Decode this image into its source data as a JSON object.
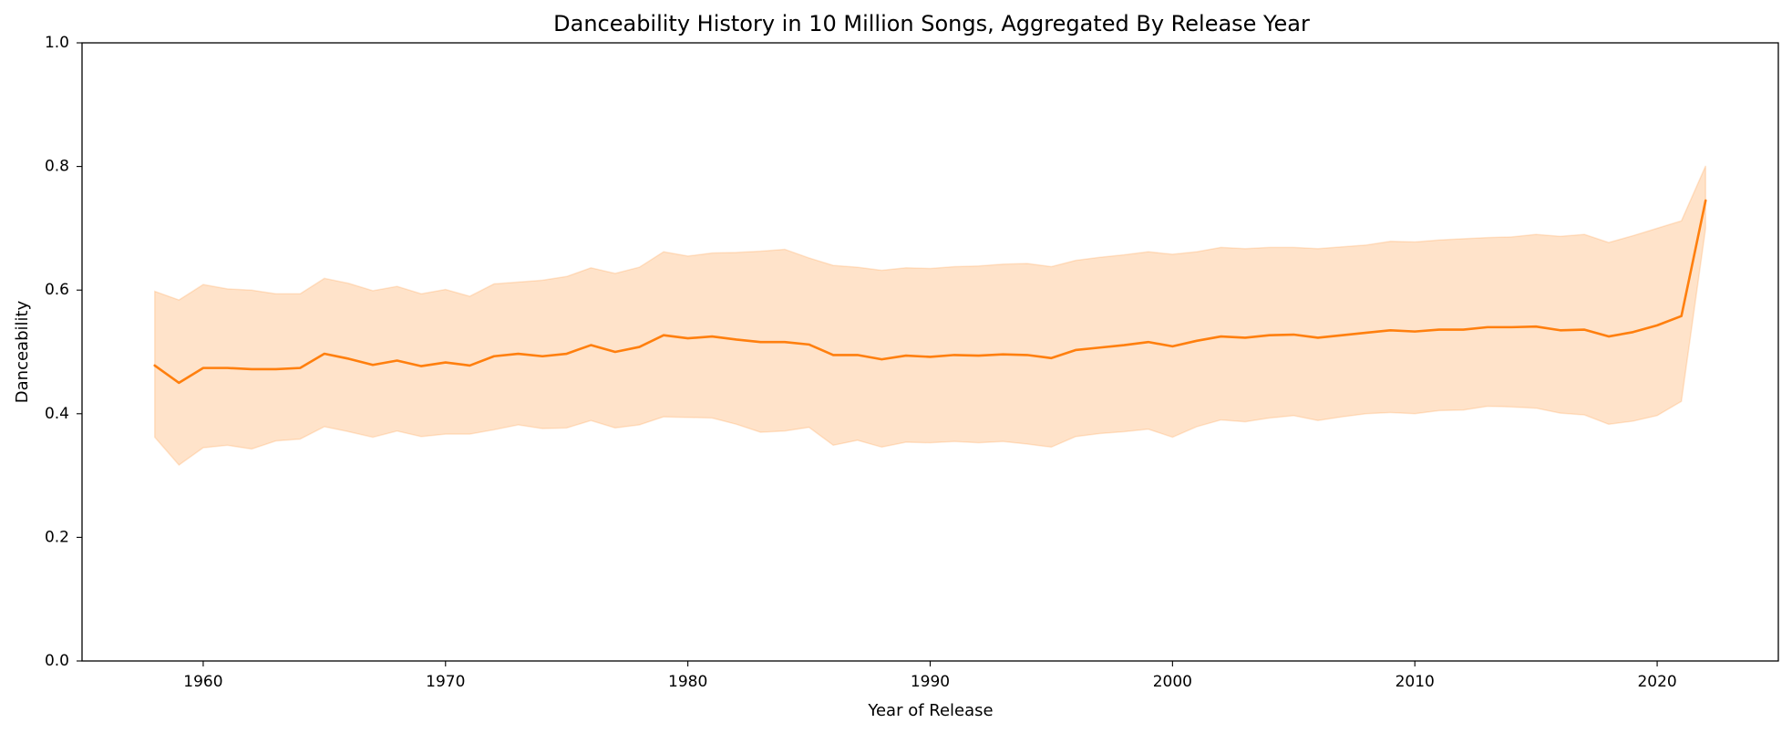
{
  "chart_data": {
    "type": "line",
    "title": "Danceability History in 10 Million Songs, Aggregated By Release Year",
    "xlabel": "Year of Release",
    "ylabel": "Danceability",
    "xlim": [
      1955,
      2025
    ],
    "ylim": [
      0.0,
      1.0
    ],
    "x_ticks": [
      1960,
      1970,
      1980,
      1990,
      2000,
      2010,
      2020
    ],
    "x_tick_labels": [
      "1960",
      "1970",
      "1980",
      "1990",
      "2000",
      "2010",
      "2020"
    ],
    "y_ticks": [
      0.0,
      0.2,
      0.4,
      0.6,
      0.8,
      1.0
    ],
    "y_tick_labels": [
      "0.0",
      "0.2",
      "0.4",
      "0.6",
      "0.8",
      "1.0"
    ],
    "grid": false,
    "colors": {
      "line": "#ff7f0e",
      "band": "#ff7f0e"
    },
    "series": [
      {
        "name": "Danceability",
        "x": [
          1958,
          1959,
          1960,
          1961,
          1962,
          1963,
          1964,
          1965,
          1966,
          1967,
          1968,
          1969,
          1970,
          1971,
          1972,
          1973,
          1974,
          1975,
          1976,
          1977,
          1978,
          1979,
          1980,
          1981,
          1982,
          1983,
          1984,
          1985,
          1986,
          1987,
          1988,
          1989,
          1990,
          1991,
          1992,
          1993,
          1994,
          1995,
          1996,
          1997,
          1998,
          1999,
          2000,
          2001,
          2002,
          2003,
          2004,
          2005,
          2006,
          2007,
          2008,
          2009,
          2010,
          2011,
          2012,
          2013,
          2014,
          2015,
          2016,
          2017,
          2018,
          2019,
          2020,
          2021,
          2022
        ],
        "values": [
          0.478,
          0.45,
          0.474,
          0.474,
          0.472,
          0.472,
          0.474,
          0.497,
          0.489,
          0.479,
          0.486,
          0.477,
          0.483,
          0.478,
          0.493,
          0.497,
          0.493,
          0.497,
          0.511,
          0.5,
          0.508,
          0.527,
          0.522,
          0.525,
          0.52,
          0.516,
          0.516,
          0.512,
          0.495,
          0.495,
          0.488,
          0.494,
          0.492,
          0.495,
          0.494,
          0.496,
          0.495,
          0.49,
          0.503,
          0.507,
          0.511,
          0.516,
          0.509,
          0.518,
          0.525,
          0.523,
          0.527,
          0.528,
          0.523,
          0.527,
          0.531,
          0.535,
          0.533,
          0.536,
          0.536,
          0.54,
          0.54,
          0.541,
          0.535,
          0.536,
          0.525,
          0.532,
          0.543,
          0.558,
          0.745
        ],
        "band_lower": [
          0.362,
          0.317,
          0.345,
          0.349,
          0.343,
          0.356,
          0.359,
          0.379,
          0.371,
          0.362,
          0.372,
          0.363,
          0.367,
          0.367,
          0.374,
          0.382,
          0.376,
          0.377,
          0.389,
          0.377,
          0.382,
          0.395,
          0.394,
          0.393,
          0.383,
          0.37,
          0.372,
          0.378,
          0.349,
          0.357,
          0.346,
          0.354,
          0.353,
          0.355,
          0.353,
          0.355,
          0.351,
          0.346,
          0.363,
          0.368,
          0.371,
          0.375,
          0.362,
          0.379,
          0.39,
          0.387,
          0.393,
          0.397,
          0.389,
          0.395,
          0.4,
          0.402,
          0.4,
          0.405,
          0.406,
          0.412,
          0.411,
          0.409,
          0.401,
          0.398,
          0.383,
          0.388,
          0.397,
          0.42,
          0.7
        ],
        "band_upper": [
          0.598,
          0.584,
          0.609,
          0.602,
          0.6,
          0.594,
          0.594,
          0.619,
          0.611,
          0.599,
          0.606,
          0.594,
          0.601,
          0.59,
          0.61,
          0.613,
          0.616,
          0.622,
          0.636,
          0.627,
          0.637,
          0.662,
          0.655,
          0.66,
          0.661,
          0.663,
          0.666,
          0.652,
          0.64,
          0.637,
          0.632,
          0.636,
          0.635,
          0.638,
          0.639,
          0.642,
          0.643,
          0.638,
          0.648,
          0.653,
          0.657,
          0.662,
          0.658,
          0.662,
          0.669,
          0.667,
          0.669,
          0.669,
          0.667,
          0.67,
          0.673,
          0.679,
          0.678,
          0.681,
          0.683,
          0.685,
          0.686,
          0.69,
          0.687,
          0.69,
          0.677,
          0.688,
          0.7,
          0.712,
          0.801
        ]
      }
    ]
  }
}
